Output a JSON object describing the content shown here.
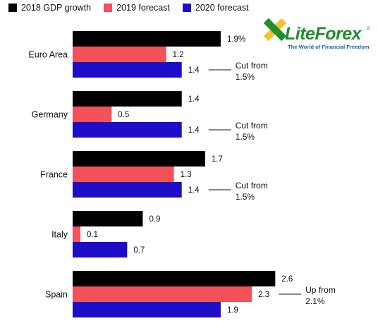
{
  "legend": {
    "items": [
      {
        "label": "2018 GDP growth",
        "color": "#000000"
      },
      {
        "label": "2019 forecast",
        "color": "#f4515a"
      },
      {
        "label": "2020 forecast",
        "color": "#1d0dc7"
      }
    ]
  },
  "logo": {
    "brand": "LiteForex",
    "tagline": "The World of Financial Freedom",
    "registered": "®",
    "brand_color": "#1f8f2a",
    "tagline_color": "#1a5fb4"
  },
  "chart_data": {
    "type": "bar",
    "orientation": "horizontal",
    "categories": [
      "Euro Area",
      "Germany",
      "France",
      "Italy",
      "Spain"
    ],
    "series": [
      {
        "name": "2018 GDP growth",
        "color": "#000000",
        "values": [
          1.9,
          1.4,
          1.7,
          0.9,
          2.6
        ],
        "labels": [
          "1.9%",
          "1.4",
          "1.7",
          "0.9",
          "2.6"
        ]
      },
      {
        "name": "2019 forecast",
        "color": "#f4515a",
        "values": [
          1.2,
          0.5,
          1.3,
          0.1,
          2.3
        ],
        "labels": [
          "1.2",
          "0.5",
          "1.3",
          "0.1",
          "2.3"
        ]
      },
      {
        "name": "2020 forecast",
        "color": "#1d0dc7",
        "values": [
          1.4,
          1.4,
          1.4,
          0.7,
          1.9
        ],
        "labels": [
          "1.4",
          "1.4",
          "1.4",
          "0.7",
          "1.9"
        ]
      }
    ],
    "annotations": [
      {
        "category": "Euro Area",
        "series": "2020 forecast",
        "lines": [
          "Cut from",
          "1.5%"
        ]
      },
      {
        "category": "Germany",
        "series": "2020 forecast",
        "lines": [
          "Cut from",
          "1.5%"
        ]
      },
      {
        "category": "France",
        "series": "2020 forecast",
        "lines": [
          "Cut from",
          "1.5%"
        ]
      },
      {
        "category": "Spain",
        "series": "2019 forecast",
        "lines": [
          "Up from",
          "2.1%"
        ]
      }
    ],
    "xlim": [
      0,
      2.6
    ]
  }
}
